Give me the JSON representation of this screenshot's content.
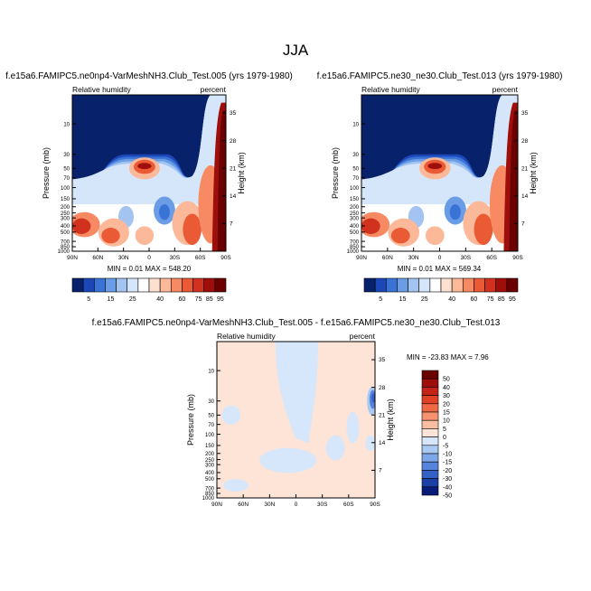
{
  "figure": {
    "title": "JJA"
  },
  "chart_data": [
    {
      "type": "heatmap",
      "title": "f.e15a6.FAMIPC5.ne0np4-VarMeshNH3.Club_Test.005 (yrs 1979-1980)",
      "left_label": "Relative humidity",
      "right_label": "percent",
      "xlabel": "",
      "ylabel": "Pressure (mb)",
      "y2label": "Height (km)",
      "x_ticks": [
        "90N",
        "60N",
        "30N",
        "0",
        "30S",
        "60S",
        "90S"
      ],
      "y_ticks": [
        "10",
        "30",
        "50",
        "70",
        "100",
        "150",
        "200",
        "250",
        "300",
        "400",
        "500",
        "700",
        "850",
        "1000"
      ],
      "y2_ticks": [
        "35",
        "28",
        "21",
        "14",
        "7"
      ],
      "min_label": "MIN =  0.01",
      "max_label": "MAX = 548.20",
      "colorbar_levels": [
        "5",
        "15",
        "25",
        "40",
        "60",
        "75",
        "85",
        "95"
      ]
    },
    {
      "type": "heatmap",
      "title": "f.e15a6.FAMIPC5.ne30_ne30.Club_Test.013 (yrs 1979-1980)",
      "left_label": "Relative humidity",
      "right_label": "percent",
      "xlabel": "",
      "ylabel": "Pressure (mb)",
      "y2label": "Height (km)",
      "x_ticks": [
        "90N",
        "60N",
        "30N",
        "0",
        "30S",
        "60S",
        "90S"
      ],
      "y_ticks": [
        "10",
        "30",
        "50",
        "70",
        "100",
        "150",
        "200",
        "250",
        "300",
        "400",
        "500",
        "700",
        "850",
        "1000"
      ],
      "y2_ticks": [
        "35",
        "28",
        "21",
        "14",
        "7"
      ],
      "min_label": "MIN =  0.01",
      "max_label": "MAX = 569.34",
      "colorbar_levels": [
        "5",
        "15",
        "25",
        "40",
        "60",
        "75",
        "85",
        "95"
      ]
    },
    {
      "type": "heatmap",
      "title": "f.e15a6.FAMIPC5.ne0np4-VarMeshNH3.Club_Test.005 - f.e15a6.FAMIPC5.ne30_ne30.Club_Test.013",
      "left_label": "Relative humidity",
      "right_label": "percent",
      "xlabel": "",
      "ylabel": "Pressure (mb)",
      "y2label": "Height (km)",
      "x_ticks": [
        "90N",
        "60N",
        "30N",
        "0",
        "30S",
        "60S",
        "90S"
      ],
      "y_ticks": [
        "10",
        "30",
        "50",
        "70",
        "100",
        "150",
        "200",
        "250",
        "300",
        "400",
        "500",
        "700",
        "850",
        "1000"
      ],
      "y2_ticks": [
        "35",
        "28",
        "21",
        "14",
        "7"
      ],
      "min_label": "MIN = -23.83",
      "max_label": "MAX =   7.96",
      "colorbar_levels": [
        "50",
        "40",
        "30",
        "20",
        "15",
        "10",
        "5",
        "0",
        "-5",
        "-10",
        "-15",
        "-20",
        "-30",
        "-40",
        "-50"
      ]
    }
  ],
  "colors": {
    "abs_scale": [
      "#08216b",
      "#1c47b8",
      "#3a73d6",
      "#6a9de6",
      "#a3c4f0",
      "#d6e6fa",
      "#ffffff",
      "#fde0cf",
      "#fbb99a",
      "#f78a62",
      "#ea5a35",
      "#d13220",
      "#9e0f0c",
      "#6b0000"
    ],
    "diff_scale": [
      "#6b0000",
      "#9e0f0c",
      "#c42317",
      "#e04125",
      "#ef6a44",
      "#f79270",
      "#fbbea2",
      "#fde4d6",
      "#d7e7fb",
      "#a9c8f2",
      "#7ea7ea",
      "#5684dc",
      "#3461c8",
      "#1c3fa6",
      "#071c7a"
    ]
  }
}
